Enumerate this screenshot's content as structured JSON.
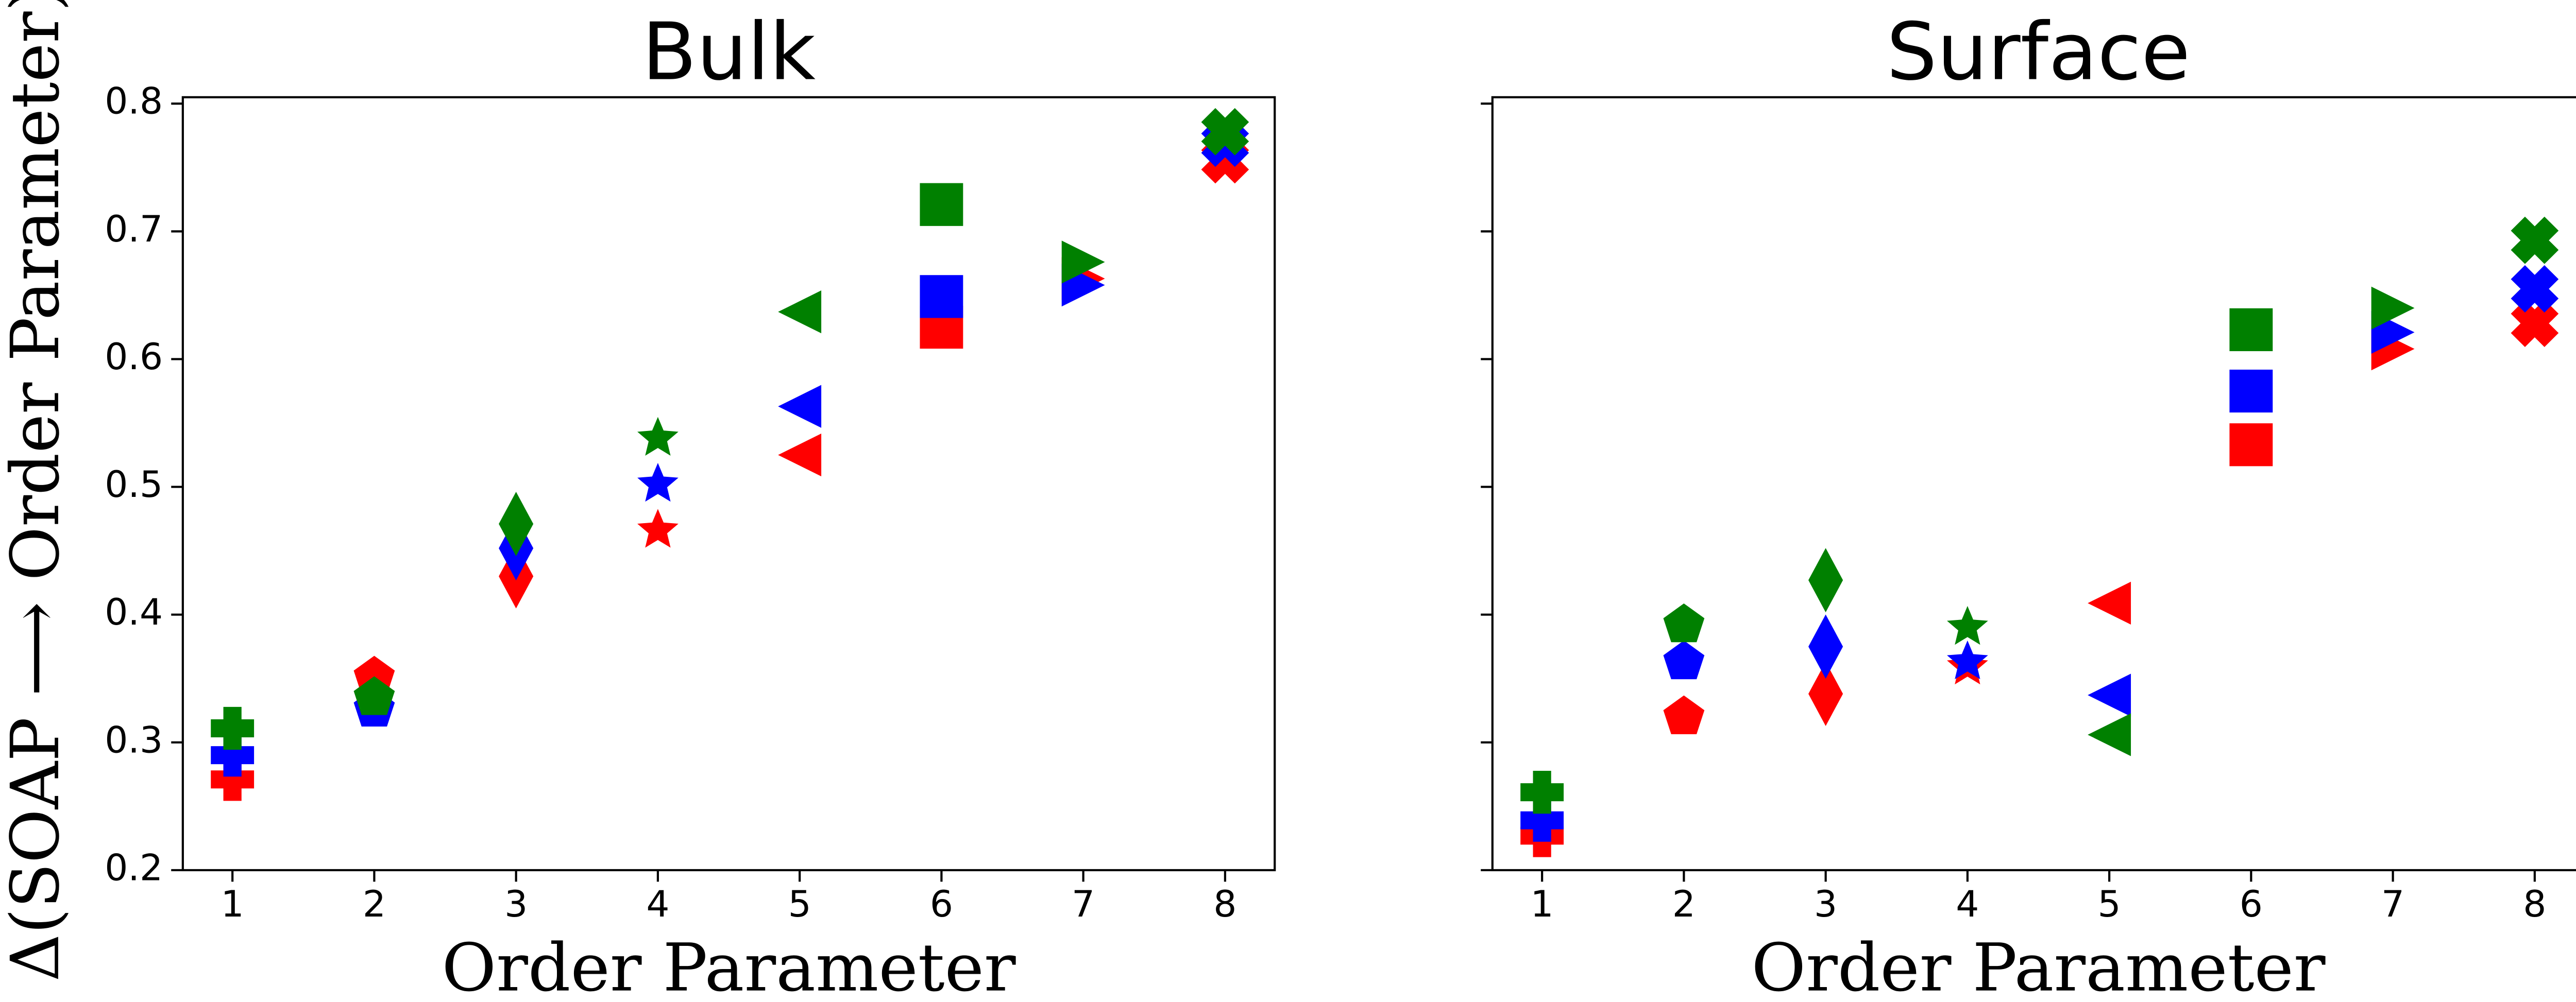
{
  "chart_data": [
    {
      "type": "scatter",
      "title": "Bulk",
      "x_label": "Order Parameter",
      "y_label": "Δ(SOAP ⟶ Order Parameter)",
      "x": [
        1,
        2,
        3,
        4,
        5,
        6,
        7,
        8
      ],
      "markers": [
        "P",
        "p",
        "d",
        "*",
        "<",
        "s",
        ">",
        "X"
      ],
      "series": [
        {
          "color": "#ff0000",
          "values": [
            0.271,
            0.351,
            0.43,
            0.466,
            0.525,
            0.625,
            0.663,
            0.756
          ]
        },
        {
          "color": "#0000ff",
          "values": [
            0.29,
            0.326,
            0.452,
            0.502,
            0.563,
            0.649,
            0.658,
            0.769
          ]
        },
        {
          "color": "#008000",
          "values": [
            0.311,
            0.335,
            0.471,
            0.538,
            0.637,
            0.721,
            0.676,
            0.778
          ]
        }
      ],
      "xlim": [
        0.65,
        8.35
      ],
      "ylim": [
        0.2,
        0.805
      ],
      "xticks": [
        1,
        2,
        3,
        4,
        5,
        6,
        7,
        8
      ],
      "yticks": [
        0.2,
        0.3,
        0.4,
        0.5,
        0.6,
        0.7,
        0.8
      ]
    },
    {
      "type": "scatter",
      "title": "Surface",
      "x_label": "Order Parameter",
      "x": [
        1,
        2,
        3,
        4,
        5,
        6,
        7,
        8
      ],
      "markers": [
        "P",
        "p",
        "d",
        "*",
        "<",
        "s",
        ">",
        "X"
      ],
      "series": [
        {
          "color": "#ff0000",
          "values": [
            0.227,
            0.32,
            0.338,
            0.359,
            0.409,
            0.533,
            0.608,
            0.628
          ]
        },
        {
          "color": "#0000ff",
          "values": [
            0.239,
            0.363,
            0.375,
            0.363,
            0.337,
            0.575,
            0.621,
            0.655
          ]
        },
        {
          "color": "#008000",
          "values": [
            0.261,
            0.392,
            0.427,
            0.39,
            0.306,
            0.623,
            0.64,
            0.693
          ]
        }
      ],
      "xlim": [
        0.65,
        8.35
      ],
      "ylim": [
        0.2,
        0.805
      ],
      "xticks": [
        1,
        2,
        3,
        4,
        5,
        6,
        7,
        8
      ],
      "yticks": [
        0.2,
        0.3,
        0.4,
        0.5,
        0.6,
        0.7,
        0.8
      ]
    }
  ]
}
